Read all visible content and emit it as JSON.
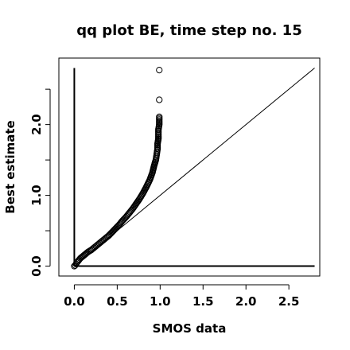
{
  "chart_data": {
    "type": "scatter",
    "title": "qq plot BE, time step no. 15",
    "xlabel": "SMOS data",
    "ylabel": "Best estimate",
    "xlim": [
      -0.18,
      2.86
    ],
    "ylim": [
      -0.14,
      2.94
    ],
    "x_ticks": [
      0.0,
      0.5,
      1.0,
      1.5,
      2.0,
      2.5
    ],
    "x_tick_labels": [
      "0.0",
      "0.5",
      "1.0",
      "1.5",
      "2.0",
      "2.5"
    ],
    "y_ticks": [
      0.0,
      0.5,
      1.0,
      1.5,
      2.0,
      2.5
    ],
    "y_tick_labels": [
      "0.0",
      "1.0",
      "2.0"
    ],
    "y_labeled_ticks": [
      0.0,
      1.0,
      2.0
    ],
    "grid": false,
    "legend": "none",
    "reference_lines": [
      {
        "name": "identity",
        "x": [
          0,
          2.8
        ],
        "y": [
          0,
          2.8
        ]
      },
      {
        "name": "vertical-axis-line",
        "x": [
          0,
          0
        ],
        "y": [
          0,
          2.8
        ]
      },
      {
        "name": "horizontal-axis-line",
        "x": [
          0,
          2.8
        ],
        "y": [
          0,
          0
        ]
      }
    ],
    "points": [
      [
        0.0,
        0.0
      ],
      [
        0.01,
        0.01
      ],
      [
        0.02,
        0.03
      ],
      [
        0.03,
        0.05
      ],
      [
        0.05,
        0.08
      ],
      [
        0.07,
        0.11
      ],
      [
        0.1,
        0.14
      ],
      [
        0.13,
        0.17
      ],
      [
        0.16,
        0.2
      ],
      [
        0.2,
        0.23
      ],
      [
        0.24,
        0.27
      ],
      [
        0.28,
        0.31
      ],
      [
        0.32,
        0.35
      ],
      [
        0.36,
        0.39
      ],
      [
        0.4,
        0.43
      ],
      [
        0.44,
        0.48
      ],
      [
        0.48,
        0.53
      ],
      [
        0.52,
        0.58
      ],
      [
        0.56,
        0.64
      ],
      [
        0.6,
        0.69
      ],
      [
        0.64,
        0.75
      ],
      [
        0.68,
        0.81
      ],
      [
        0.72,
        0.88
      ],
      [
        0.76,
        0.95
      ],
      [
        0.8,
        1.03
      ],
      [
        0.84,
        1.12
      ],
      [
        0.88,
        1.22
      ],
      [
        0.91,
        1.32
      ],
      [
        0.93,
        1.42
      ],
      [
        0.95,
        1.5
      ],
      [
        0.96,
        1.58
      ],
      [
        0.97,
        1.66
      ],
      [
        0.97,
        1.73
      ],
      [
        0.98,
        1.8
      ],
      [
        0.98,
        1.87
      ],
      [
        0.98,
        1.93
      ],
      [
        0.99,
        2.0
      ],
      [
        0.99,
        2.05
      ],
      [
        0.99,
        2.11
      ],
      [
        0.99,
        2.35
      ],
      [
        0.99,
        2.77
      ]
    ],
    "colors": {
      "points": "#000000",
      "lines": "#000000",
      "background": "#ffffff"
    }
  }
}
